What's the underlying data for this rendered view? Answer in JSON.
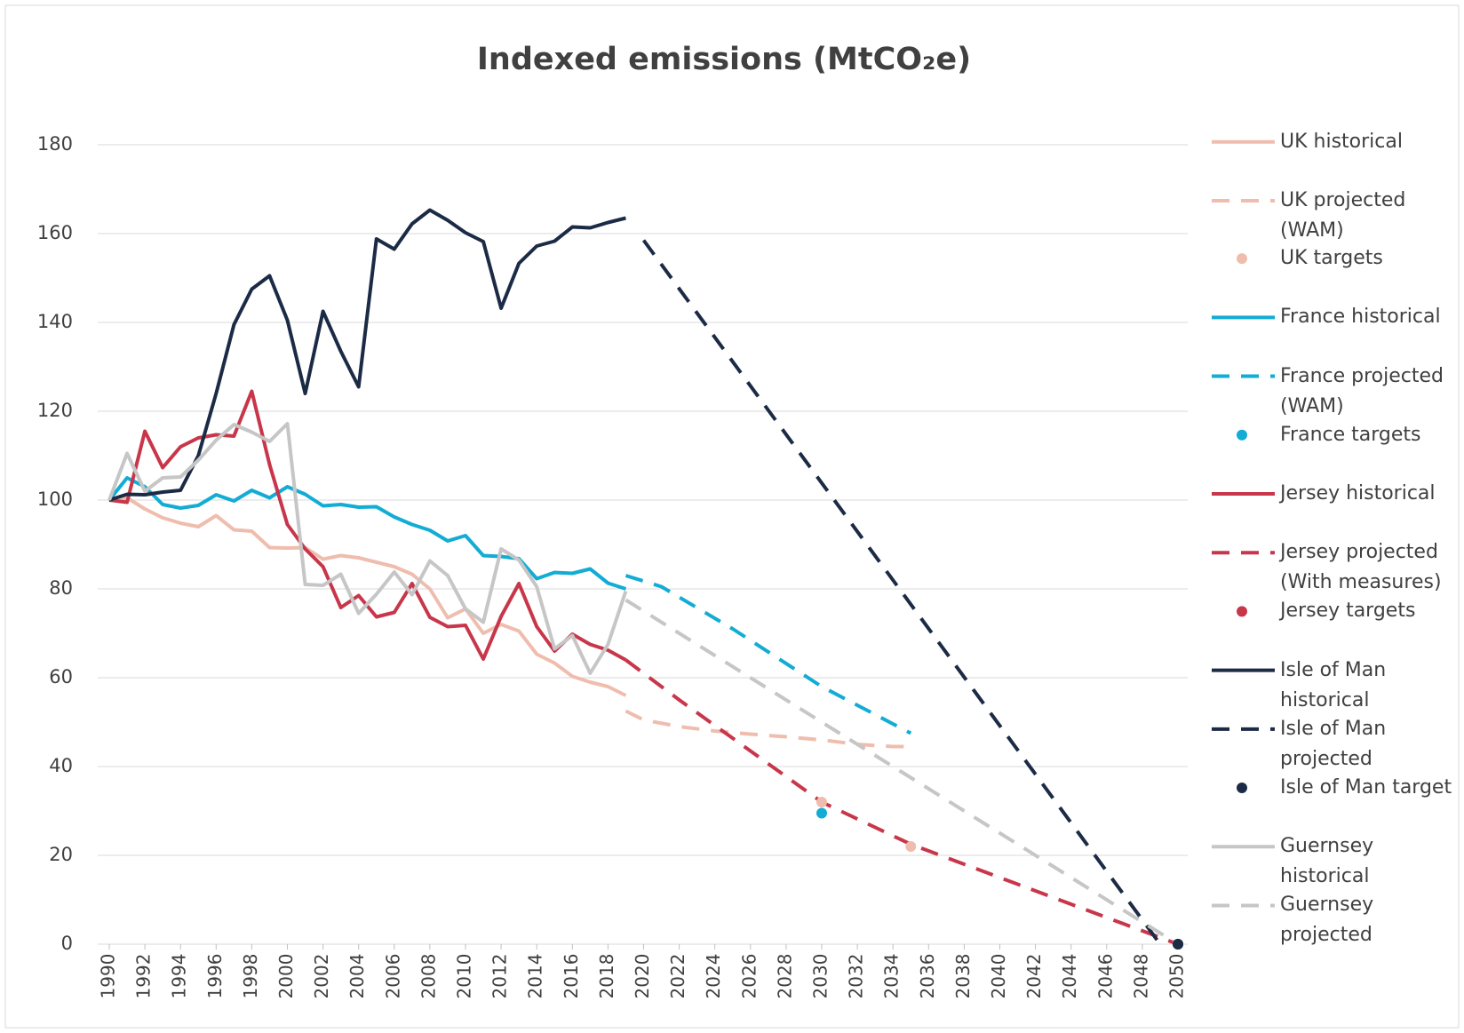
{
  "chart_data": {
    "type": "line",
    "title": "Indexed emissions (MtCO₂e)",
    "xlim": [
      1990,
      2050
    ],
    "xticks": [
      1990,
      1992,
      1994,
      1996,
      1998,
      2000,
      2002,
      2004,
      2006,
      2008,
      2010,
      2012,
      2014,
      2016,
      2018,
      2020,
      2022,
      2024,
      2026,
      2028,
      2030,
      2032,
      2034,
      2036,
      2038,
      2040,
      2042,
      2044,
      2046,
      2048,
      2050
    ],
    "ylim": [
      0,
      180
    ],
    "yticks": [
      0,
      20,
      40,
      60,
      80,
      100,
      120,
      140,
      160,
      180
    ],
    "grid": true,
    "legend": "right",
    "series": [
      {
        "name": "UK historical",
        "color": "#efbdae",
        "style": "solid",
        "x": [
          1990,
          1991,
          1992,
          1993,
          1994,
          1995,
          1996,
          1997,
          1998,
          1999,
          2000,
          2001,
          2002,
          2003,
          2004,
          2005,
          2006,
          2007,
          2008,
          2009,
          2010,
          2011,
          2012,
          2013,
          2014,
          2015,
          2016,
          2017,
          2018,
          2019
        ],
        "values": [
          100,
          100.5,
          98,
          96,
          94.8,
          94,
          96.5,
          93.3,
          93,
          89.3,
          89.2,
          89.3,
          86.7,
          87.5,
          87,
          86,
          85,
          83.3,
          80,
          73.5,
          75.5,
          70,
          72,
          70.5,
          65.3,
          63.3,
          60.3,
          59,
          58,
          56
        ]
      },
      {
        "name": "UK projected (WAM)",
        "color": "#efbdae",
        "style": "dashed",
        "x": [
          2019,
          2020,
          2022,
          2024,
          2026,
          2028,
          2030,
          2032,
          2034,
          2035
        ],
        "values": [
          52.5,
          50.5,
          49,
          48,
          47.3,
          46.7,
          46,
          45,
          44.5,
          44.5
        ]
      },
      {
        "name": "UK targets",
        "color": "#efbdae",
        "style": "marker",
        "x": [
          2030,
          2035,
          2050
        ],
        "values": [
          32,
          22,
          0
        ]
      },
      {
        "name": "France historical",
        "color": "#12acd4",
        "style": "solid",
        "x": [
          1990,
          1991,
          1992,
          1993,
          1994,
          1995,
          1996,
          1997,
          1998,
          1999,
          2000,
          2001,
          2002,
          2003,
          2004,
          2005,
          2006,
          2007,
          2008,
          2009,
          2010,
          2011,
          2012,
          2013,
          2014,
          2015,
          2016,
          2017,
          2018,
          2019
        ],
        "values": [
          100,
          105,
          103,
          99,
          98.2,
          98.8,
          101.2,
          99.8,
          102.2,
          100.5,
          103,
          101.3,
          98.7,
          99,
          98.4,
          98.5,
          96.2,
          94.5,
          93.2,
          90.8,
          92,
          87.5,
          87.3,
          86.8,
          82.3,
          83.7,
          83.5,
          84.5,
          81.3,
          80
        ]
      },
      {
        "name": "France projected (WAM)",
        "color": "#12acd4",
        "style": "dashed",
        "x": [
          2019,
          2021,
          2025,
          2030,
          2035
        ],
        "values": [
          83,
          80.5,
          71,
          58,
          47.5
        ]
      },
      {
        "name": "France targets",
        "color": "#12acd4",
        "style": "marker",
        "x": [
          2030,
          2050
        ],
        "values": [
          29.5,
          0
        ]
      },
      {
        "name": "Jersey historical",
        "color": "#c8364a",
        "style": "solid",
        "x": [
          1990,
          1991,
          1992,
          1993,
          1994,
          1995,
          1996,
          1997,
          1998,
          1999,
          2000,
          2001,
          2002,
          2003,
          2004,
          2005,
          2006,
          2007,
          2008,
          2009,
          2010,
          2011,
          2012,
          2013,
          2014,
          2015,
          2016,
          2017,
          2018,
          2019
        ],
        "values": [
          100,
          99.5,
          115.5,
          107.3,
          112,
          114,
          114.7,
          114.4,
          124.5,
          108,
          94.5,
          89,
          85,
          75.8,
          78.5,
          73.7,
          74.7,
          81.2,
          73.6,
          71.5,
          71.8,
          64.2,
          73.8,
          81.2,
          71.5,
          66,
          69.8,
          67.5,
          66.2,
          64
        ]
      },
      {
        "name": "Jersey projected (With measures)",
        "color": "#c8364a",
        "style": "dashed",
        "x": [
          2019,
          2022,
          2030,
          2035,
          2050
        ],
        "values": [
          64,
          55,
          32,
          22.5,
          0
        ]
      },
      {
        "name": "Jersey targets",
        "color": "#c8364a",
        "style": "marker",
        "x": [
          2050
        ],
        "values": [
          0
        ]
      },
      {
        "name": "Isle of Man historical",
        "color": "#1c2b45",
        "style": "solid",
        "x": [
          1990,
          1991,
          1992,
          1993,
          1994,
          1995,
          1996,
          1997,
          1998,
          1999,
          2000,
          2001,
          2002,
          2003,
          2004,
          2005,
          2006,
          2007,
          2008,
          2009,
          2010,
          2011,
          2012,
          2013,
          2014,
          2015,
          2016,
          2017,
          2018,
          2019
        ],
        "values": [
          100,
          101.3,
          101.2,
          101.8,
          102.2,
          110,
          124,
          139.5,
          147.5,
          150.5,
          140.5,
          124,
          142.5,
          133.5,
          125.5,
          158.8,
          156.5,
          162.2,
          165.3,
          163,
          160.2,
          158.2,
          143.2,
          153.3,
          157.2,
          158.3,
          161.5,
          161.3,
          162.5,
          163.5
        ]
      },
      {
        "name": "Isle of Man projected",
        "color": "#1c2b45",
        "style": "dashed",
        "x": [
          2020,
          2049
        ],
        "values": [
          158.5,
          0
        ]
      },
      {
        "name": "Isle of Man target",
        "color": "#1c2b45",
        "style": "marker",
        "x": [
          2050
        ],
        "values": [
          0
        ]
      },
      {
        "name": "Guernsey historical",
        "color": "#c6c6c6",
        "style": "solid",
        "x": [
          1990,
          1991,
          1992,
          1993,
          1994,
          1995,
          1996,
          1997,
          1998,
          1999,
          2000,
          2001,
          2002,
          2003,
          2004,
          2005,
          2006,
          2007,
          2008,
          2009,
          2010,
          2011,
          2012,
          2013,
          2014,
          2015,
          2016,
          2017,
          2018,
          2019
        ],
        "values": [
          100,
          110.5,
          102,
          105,
          105.2,
          109,
          113.5,
          117,
          115.3,
          113.2,
          117.2,
          81,
          80.8,
          83.3,
          74.5,
          78.8,
          83.8,
          78.7,
          86.3,
          83,
          75.5,
          72.5,
          89,
          86.5,
          80.5,
          66.5,
          69.5,
          61,
          67.5,
          79.5
        ]
      },
      {
        "name": "Guernsey projected",
        "color": "#c6c6c6",
        "style": "dashed",
        "x": [
          2019,
          2050
        ],
        "values": [
          77.5,
          0
        ]
      }
    ]
  }
}
